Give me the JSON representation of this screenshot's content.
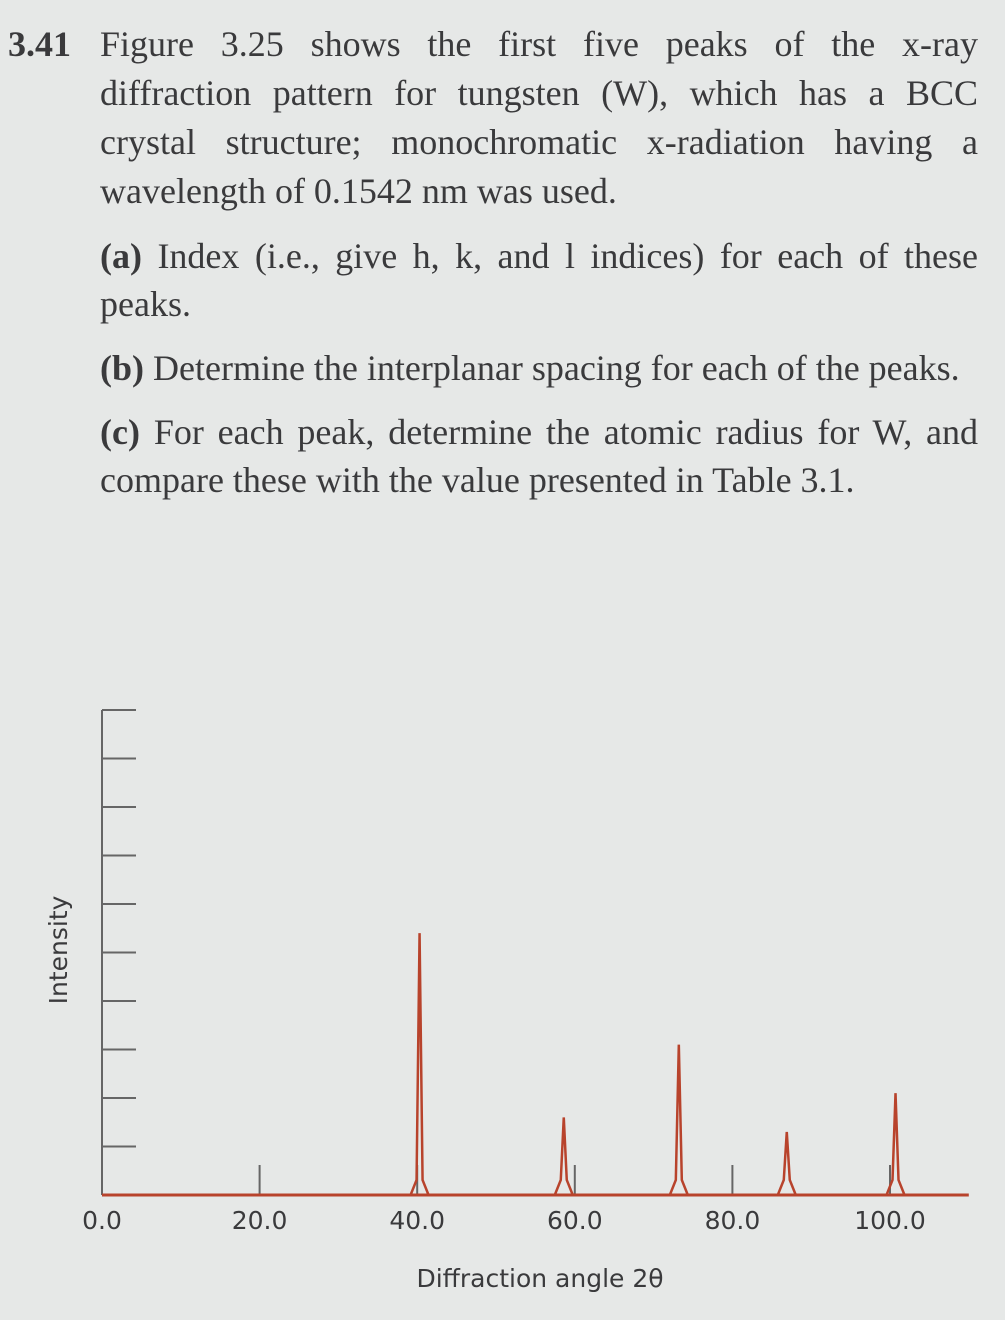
{
  "problem": {
    "number": "3.41",
    "statement": "Figure 3.25 shows the first five peaks of the x-ray diffraction pattern for tungsten (W), which has a BCC crystal structure; monochromatic x-radiation having a wavelength of 0.1542 nm was used.",
    "parts": [
      {
        "label": "(a)",
        "text": "Index (i.e., give h, k, and l indices) for each of these peaks."
      },
      {
        "label": "(b)",
        "text": "Determine the interplanar spacing for each of the peaks."
      },
      {
        "label": "(c)",
        "text": "For each peak, determine the atomic radius for W, and compare these with the value presented in Table 3.1."
      }
    ]
  },
  "chart_data": {
    "type": "line",
    "x_label": "Diffraction angle 2θ",
    "y_label": "Intensity",
    "x": [
      40.3,
      58.6,
      73.2,
      86.9,
      100.7
    ],
    "series": [
      {
        "color": "#b8432c",
        "values": [
          5.4,
          1.6,
          3.1,
          1.3,
          2.1
        ]
      }
    ],
    "xlim": [
      0,
      110
    ],
    "ylim": [
      0,
      10
    ],
    "xticks": [
      {
        "value": 0,
        "label": "0.0"
      },
      {
        "value": 20,
        "label": "20.0"
      },
      {
        "value": 40,
        "label": "40.0"
      },
      {
        "value": 60,
        "label": "60.0"
      },
      {
        "value": 80,
        "label": "80.0"
      },
      {
        "value": 100,
        "label": "100.0"
      }
    ],
    "yticks": [
      0,
      1,
      2,
      3,
      4,
      5,
      6,
      7,
      8,
      9,
      10
    ]
  }
}
